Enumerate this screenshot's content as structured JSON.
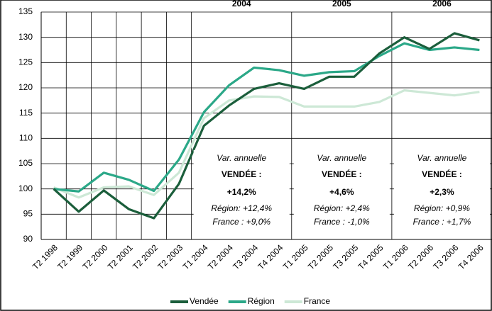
{
  "chart_data": {
    "type": "line",
    "categories": [
      "T2 1998",
      "T2 1999",
      "T2 2000",
      "T2 2001",
      "T2 2002",
      "T2 2003",
      "T1 2004",
      "T2 2004",
      "T3 2004",
      "T4 2004",
      "T1 2005",
      "T2 2005",
      "T3 2005",
      "T4 2005",
      "T1 2006",
      "T2 2006",
      "T3 2006",
      "T4 2006"
    ],
    "series": [
      {
        "name": "Vendée",
        "color": "#1b5e3b",
        "values": [
          100,
          95.5,
          99.7,
          96,
          94.2,
          101,
          112.5,
          116.5,
          119.8,
          120.9,
          119.8,
          122.2,
          122.2,
          126.8,
          130,
          127.7,
          130.8,
          129.4
        ]
      },
      {
        "name": "Région",
        "color": "#2ba888",
        "values": [
          100,
          99.5,
          103.2,
          101.8,
          99.6,
          105.8,
          115.2,
          120.5,
          124,
          123.5,
          122.4,
          123.1,
          123.3,
          126.3,
          128.8,
          127.5,
          128,
          127.5
        ]
      },
      {
        "name": "France",
        "color": "#cde8d6",
        "values": [
          100.3,
          98.3,
          100.3,
          100.5,
          98.8,
          103.2,
          114,
          117.5,
          118.3,
          118.2,
          116.3,
          116.3,
          116.3,
          117.2,
          119.5,
          119,
          118.5,
          119.2
        ]
      }
    ],
    "ylim": [
      90,
      135
    ],
    "yticks": [
      90,
      95,
      100,
      105,
      110,
      115,
      120,
      125,
      130,
      135
    ],
    "grid": true,
    "legend": "bottom",
    "annotations": [
      {
        "header": "2004",
        "title": "Var. annuelle",
        "label": "VENDÉE :",
        "value": "+14,2%",
        "region": "Région: +12,4%",
        "france": "France : +9,0%"
      },
      {
        "header": "2005",
        "title": "Var. annuelle",
        "label": "VENDÉE :",
        "value": "+4,6%",
        "region": "Région: +2,4%",
        "france": "France : -1,0%"
      },
      {
        "header": "2006",
        "title": "Var. annuelle",
        "label": "VENDÉE :",
        "value": "+2,3%",
        "region": "Région: +0,9%",
        "france": "France : +1,7%"
      }
    ]
  }
}
